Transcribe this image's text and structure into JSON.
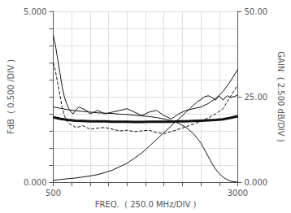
{
  "chart_data": {
    "type": "line",
    "xlabel": "FREQ.  ( 250.0 MHz/DIV )",
    "ylabel": "FdB  ( 0.500 /DIV )",
    "y2label": "GAIN  ( 2.500 dB/DIV )",
    "xlim": [
      500,
      3000
    ],
    "xticks": [
      500,
      3000
    ],
    "ylim": [
      0.0,
      5.0
    ],
    "yticks": [
      {
        "value": 0,
        "label": "0.000"
      },
      {
        "value": 5,
        "label": "5.000"
      }
    ],
    "y2lim": [
      0.0,
      50.0
    ],
    "y2ticks": [
      {
        "value": 0,
        "label": "0.000"
      },
      {
        "value": 25,
        "label": "25.00"
      },
      {
        "value": 50,
        "label": "50.00"
      }
    ],
    "grid": true,
    "series": [
      {
        "color": "#111111",
        "line_style": "solid",
        "x": [
          500,
          530,
          560,
          590,
          620,
          650,
          680,
          710,
          740,
          770,
          800,
          850,
          900,
          950,
          1000,
          1050,
          1100,
          1150,
          1200,
          1300,
          1400,
          1500,
          1600,
          1700,
          1800,
          1900,
          2000,
          2100,
          2200,
          2300,
          2400,
          2500,
          2600,
          2700,
          2800,
          2900,
          3000
        ],
        "values": [
          4.3,
          4.0,
          3.6,
          3.2,
          2.8,
          2.5,
          2.3,
          2.15,
          2.05,
          2.0,
          2.1,
          2.2,
          2.15,
          2.1,
          2.0,
          2.05,
          2.1,
          2.05,
          2.0,
          2.05,
          2.1,
          2.15,
          2.05,
          1.95,
          2.05,
          2.1,
          1.95,
          1.85,
          2.0,
          2.1,
          2.15,
          2.2,
          2.3,
          2.45,
          2.65,
          2.95,
          3.3
        ]
      },
      {
        "color": "#111111",
        "line_style": "dashed",
        "x": [
          500,
          530,
          560,
          590,
          620,
          650,
          680,
          710,
          740,
          770,
          800,
          850,
          900,
          950,
          1000,
          1100,
          1200,
          1300,
          1400,
          1500,
          1600,
          1700,
          1800,
          1900,
          2000,
          2100,
          2200,
          2300,
          2400,
          2500,
          2600,
          2700,
          2800,
          2900,
          3000
        ],
        "values": [
          3.5,
          3.25,
          2.9,
          2.55,
          2.2,
          1.95,
          1.8,
          1.72,
          1.68,
          1.65,
          1.6,
          1.62,
          1.65,
          1.6,
          1.55,
          1.58,
          1.6,
          1.55,
          1.5,
          1.52,
          1.48,
          1.5,
          1.52,
          1.45,
          1.42,
          1.48,
          1.55,
          1.62,
          1.7,
          1.78,
          1.88,
          2.0,
          2.15,
          2.5,
          2.85
        ]
      },
      {
        "color": "#111111",
        "line_style": "thick",
        "x": [
          500,
          600,
          700,
          800,
          900,
          1000,
          1100,
          1200,
          1300,
          1400,
          1500,
          1600,
          1700,
          1800,
          1900,
          2000,
          2100,
          2200,
          2300,
          2400,
          2500,
          2600,
          2700,
          2800,
          2900,
          3000
        ],
        "values": [
          1.9,
          1.85,
          1.82,
          1.8,
          1.79,
          1.78,
          1.78,
          1.78,
          1.77,
          1.77,
          1.77,
          1.76,
          1.76,
          1.77,
          1.77,
          1.77,
          1.77,
          1.78,
          1.78,
          1.79,
          1.8,
          1.81,
          1.82,
          1.84,
          1.88,
          1.93
        ]
      },
      {
        "color": "#111111",
        "line_style": "solid",
        "axis": "y2",
        "x": [
          500,
          600,
          700,
          800,
          900,
          1000,
          1100,
          1200,
          1300,
          1400,
          1500,
          1600,
          1700,
          1800,
          1900,
          2000,
          2100,
          2200,
          2300,
          2400,
          2500,
          2550,
          2600,
          2650,
          2700,
          2750,
          2800,
          2850,
          2900,
          2950,
          3000
        ],
        "values": [
          22.0,
          21.6,
          21.2,
          20.9,
          20.7,
          20.5,
          20.3,
          20.2,
          20.1,
          19.9,
          19.8,
          19.6,
          19.4,
          19.2,
          18.9,
          18.5,
          18.0,
          17.2,
          16.0,
          14.2,
          11.5,
          9.5,
          7.5,
          5.5,
          3.8,
          2.5,
          1.5,
          0.8,
          0.3,
          0.1,
          0.0
        ]
      },
      {
        "color": "#111111",
        "line_style": "solid",
        "axis": "y2",
        "x": [
          500,
          600,
          700,
          800,
          900,
          1000,
          1100,
          1200,
          1300,
          1400,
          1500,
          1600,
          1700,
          1800,
          1900,
          2000,
          2100,
          2200,
          2300,
          2350,
          2400,
          2450,
          2500,
          2550,
          2600,
          2650,
          2700,
          2720,
          2750,
          2780,
          2800,
          2830,
          2860,
          2900,
          2940,
          2970,
          3000
        ],
        "values": [
          0.5,
          0.8,
          1.0,
          1.2,
          1.5,
          1.8,
          2.2,
          2.8,
          3.5,
          4.5,
          5.5,
          7.0,
          8.5,
          10.5,
          12.5,
          14.5,
          16.5,
          18.5,
          20.5,
          21.5,
          22.5,
          23.5,
          24.2,
          25.0,
          25.3,
          24.8,
          24.0,
          24.5,
          25.2,
          24.6,
          24.0,
          24.8,
          25.3,
          24.8,
          25.0,
          25.2,
          25.5
        ]
      }
    ]
  }
}
